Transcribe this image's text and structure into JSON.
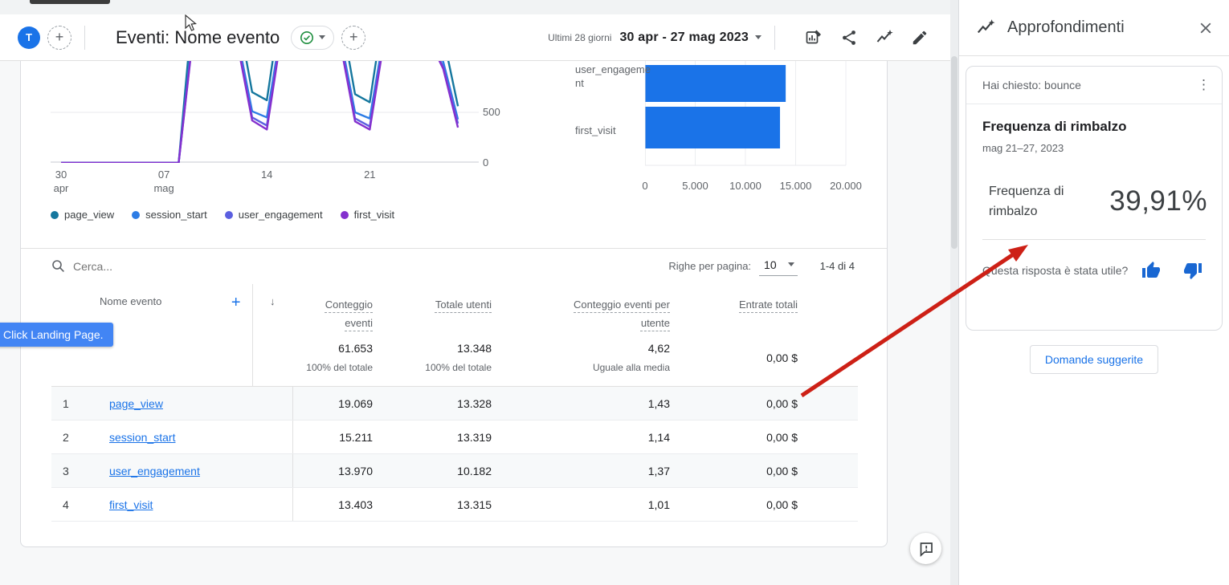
{
  "header": {
    "avatar_letter": "T",
    "title": "Eventi: Nome evento",
    "period_label": "Ultimi 28 giorni",
    "date_range": "30 apr - 27 mag 2023"
  },
  "icons": {
    "close": "✕",
    "kebab": "⋮",
    "sort_desc": "↓",
    "add": "+",
    "caret": "▾"
  },
  "chart_data": [
    {
      "type": "line",
      "x_tick_days": [
        0,
        7,
        14,
        21
      ],
      "x_tick_labels": [
        "30\napr",
        "07\nmag",
        "14",
        "21"
      ],
      "y_ticks": [
        {
          "value": 500,
          "label": "500"
        },
        {
          "value": 0,
          "label": "0"
        }
      ],
      "ylim_visible": [
        0,
        1000
      ],
      "series": [
        {
          "name": "page_view",
          "color": "#15779e",
          "values": [
            0,
            0,
            0,
            0,
            0,
            0,
            0,
            0,
            0,
            1600,
            1750,
            1700,
            1500,
            700,
            620,
            1600,
            1750,
            1700,
            1600,
            1500,
            680,
            600,
            1550,
            1700,
            1650,
            1550,
            1250,
            560
          ]
        },
        {
          "name": "session_start",
          "color": "#2c7ce5",
          "values": [
            0,
            0,
            0,
            0,
            0,
            0,
            0,
            0,
            0,
            1350,
            1500,
            1450,
            1250,
            510,
            450,
            1350,
            1500,
            1450,
            1350,
            1250,
            500,
            440,
            1300,
            1450,
            1400,
            1300,
            1000,
            430
          ]
        },
        {
          "name": "user_engagement",
          "color": "#5b5fe0",
          "values": [
            0,
            0,
            0,
            0,
            0,
            0,
            0,
            0,
            0,
            1300,
            1450,
            1400,
            1200,
            450,
            370,
            1300,
            1450,
            1400,
            1300,
            1200,
            440,
            360,
            1250,
            1400,
            1350,
            1250,
            950,
            390
          ]
        },
        {
          "name": "first_visit",
          "color": "#8430ce",
          "values": [
            0,
            0,
            0,
            0,
            0,
            0,
            0,
            0,
            0,
            1280,
            1430,
            1380,
            1180,
            420,
            330,
            1280,
            1430,
            1380,
            1280,
            1180,
            410,
            330,
            1230,
            1380,
            1330,
            1230,
            930,
            350
          ]
        }
      ]
    },
    {
      "type": "bar",
      "orientation": "horizontal",
      "categories": [
        "user_engagement",
        "first_visit"
      ],
      "values": [
        13970,
        13403
      ],
      "bar_color": "#1a73e8",
      "xlim": [
        0,
        20000
      ],
      "x_ticks": [
        0,
        5000,
        10000,
        15000,
        20000
      ],
      "x_tick_labels": [
        "0",
        "5.000",
        "10.000",
        "15.000",
        "20.000"
      ]
    }
  ],
  "table": {
    "search_placeholder": "Cerca...",
    "rows_per_page_label": "Righe per pagina:",
    "rows_per_page_value": "10",
    "pagination": "1-4 di 4",
    "columns": [
      "Nome evento",
      "Conteggio eventi",
      "Totale utenti",
      "Conteggio eventi per utente",
      "Entrate totali"
    ],
    "totals": {
      "conteggio_eventi": "61.653",
      "conteggio_eventi_sub": "100% del totale",
      "totale_utenti": "13.348",
      "totale_utenti_sub": "100% del totale",
      "eventi_per_utente": "4,62",
      "eventi_per_utente_sub": "Uguale alla media",
      "entrate_totali": "0,00 $"
    },
    "rows": [
      {
        "num": "1",
        "name": "page_view",
        "conteggio": "19.069",
        "utenti": "13.328",
        "per_utente": "1,43",
        "entrate": "0,00 $"
      },
      {
        "num": "2",
        "name": "session_start",
        "conteggio": "15.211",
        "utenti": "13.319",
        "per_utente": "1,14",
        "entrate": "0,00 $"
      },
      {
        "num": "3",
        "name": "user_engagement",
        "conteggio": "13.970",
        "utenti": "10.182",
        "per_utente": "1,37",
        "entrate": "0,00 $"
      },
      {
        "num": "4",
        "name": "first_visit",
        "conteggio": "13.403",
        "utenti": "13.315",
        "per_utente": "1,01",
        "entrate": "0,00 $"
      }
    ]
  },
  "tooltip": {
    "text": "Click Landing Page."
  },
  "insights": {
    "panel_title": "Approfondimenti",
    "question": "Hai chiesto: bounce",
    "card_title": "Frequenza di rimbalzo",
    "card_period": "mag 21–27, 2023",
    "metric_label": "Frequenza di rimbalzo",
    "metric_value": "39,91%",
    "feedback_prompt": "Questa risposta è stata utile?",
    "suggested_questions_label": "Domande suggerite"
  },
  "colors": {
    "accent_blue": "#1a73e8",
    "bar_blue": "#1a73e8",
    "arrow_red": "#cd2016",
    "tooltip_bg": "#4285f4",
    "check_green": "#1e8e3e"
  }
}
